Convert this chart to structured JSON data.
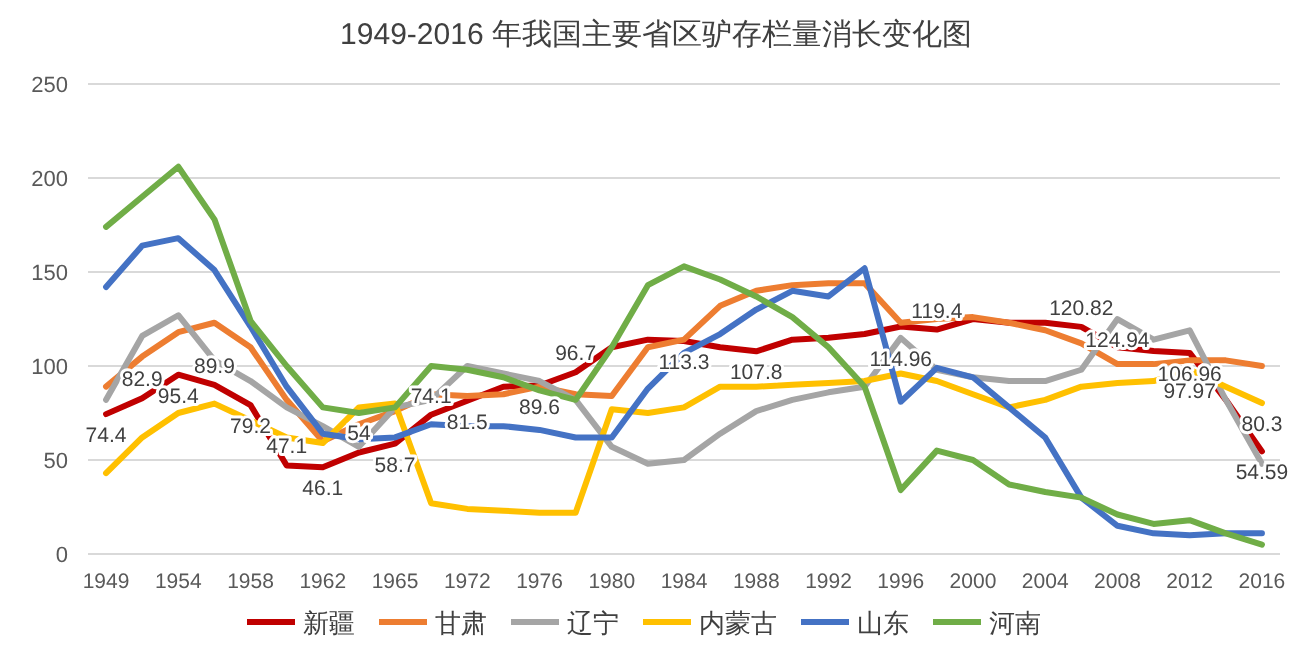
{
  "chart_data": {
    "type": "line",
    "title": "1949-2016 年我国主要省区驴存栏量消长变化图",
    "categories": [
      "1949",
      null,
      "1954",
      null,
      "1958",
      null,
      "1962",
      null,
      "1965",
      null,
      "1972",
      null,
      "1976",
      null,
      "1980",
      null,
      "1984",
      null,
      "1988",
      null,
      "1992",
      null,
      "1996",
      null,
      "2000",
      null,
      "2004",
      null,
      "2008",
      null,
      "2012",
      null,
      "2016"
    ],
    "ylim": [
      0,
      250
    ],
    "yticks": [
      0,
      50,
      100,
      150,
      200,
      250
    ],
    "grid": "y",
    "legend": "bottom",
    "marker": "none",
    "series": [
      {
        "name": "新疆",
        "color": "#c00000",
        "values": [
          74.4,
          82.9,
          95.4,
          89.9,
          79.2,
          47.1,
          46.1,
          54,
          58.7,
          74.1,
          81.5,
          89,
          89.6,
          96.7,
          110,
          114,
          113.3,
          110,
          107.8,
          114,
          115,
          117,
          121,
          119.4,
          125,
          123,
          123,
          120.82,
          110,
          108,
          106.96,
          82,
          54.59
        ],
        "value_labels": [
          "74.4",
          "82.9",
          "95.4",
          "89.9",
          "79.2",
          "47.1",
          "46.1",
          "54",
          "58.7",
          "74.1",
          "81.5",
          null,
          "89.6",
          "96.7",
          null,
          null,
          "113.3",
          null,
          "107.8",
          null,
          null,
          null,
          null,
          "119.4",
          null,
          null,
          null,
          "120.82",
          null,
          null,
          "106.96",
          null,
          "54.59"
        ]
      },
      {
        "name": "甘肃",
        "color": "#ed7d31",
        "values": [
          89,
          105,
          118,
          123,
          110,
          82,
          60,
          69,
          76,
          85,
          84,
          85,
          89,
          85,
          84,
          110,
          114,
          132,
          140,
          143,
          144,
          144,
          123,
          125,
          126,
          123,
          119,
          112,
          101,
          101,
          103,
          103,
          100
        ]
      },
      {
        "name": "辽宁",
        "color": "#a5a5a5",
        "values": [
          82,
          116,
          127,
          103,
          92,
          78,
          68,
          57,
          78,
          82,
          100,
          96,
          92,
          82,
          57,
          48,
          50,
          64,
          76,
          82,
          86,
          89,
          114.96,
          98,
          94,
          92,
          92,
          98,
          124.94,
          114,
          119,
          82,
          48
        ],
        "value_labels": [
          null,
          null,
          null,
          null,
          null,
          null,
          null,
          null,
          null,
          null,
          null,
          null,
          null,
          null,
          null,
          null,
          null,
          null,
          null,
          null,
          null,
          null,
          "114.96",
          null,
          null,
          null,
          null,
          null,
          "124.94",
          null,
          null,
          null,
          null
        ]
      },
      {
        "name": "内蒙古",
        "color": "#ffc000",
        "values": [
          43,
          62,
          75,
          80,
          71,
          62,
          59,
          78,
          80,
          27,
          24,
          23,
          22,
          22,
          77,
          75,
          78,
          89,
          89,
          90,
          91,
          92,
          96,
          92,
          85,
          78,
          82,
          89,
          91,
          92,
          97.97,
          89,
          80.3
        ],
        "value_labels": [
          null,
          null,
          null,
          null,
          null,
          null,
          null,
          null,
          null,
          null,
          null,
          null,
          null,
          null,
          null,
          null,
          null,
          null,
          null,
          null,
          null,
          null,
          null,
          null,
          null,
          null,
          null,
          null,
          null,
          null,
          "97.97",
          null,
          "80.3"
        ]
      },
      {
        "name": "山东",
        "color": "#4472c4",
        "values": [
          142,
          164,
          168,
          151,
          121,
          89,
          64,
          61,
          62,
          69,
          68,
          68,
          66,
          62,
          62,
          88,
          107,
          117,
          130,
          140,
          137,
          152,
          81,
          99,
          94,
          78,
          62,
          30,
          15,
          11,
          10,
          11,
          11
        ]
      },
      {
        "name": "河南",
        "color": "#70ad47",
        "values": [
          174,
          190,
          206,
          178,
          124,
          100,
          78,
          75,
          78,
          100,
          98,
          94,
          87,
          82,
          110,
          143,
          153,
          146,
          137,
          126,
          110,
          89,
          34,
          55,
          50,
          37,
          33,
          30,
          21,
          16,
          18,
          11,
          5
        ]
      }
    ]
  }
}
